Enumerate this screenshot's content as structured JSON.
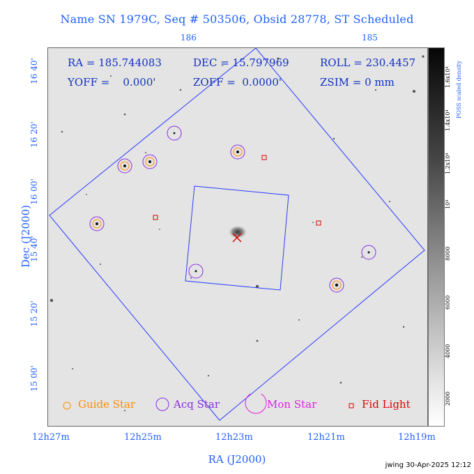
{
  "title": "Name SN 1979C, Seq # 503506, Obsid 28778, ST Scheduled",
  "top_ticks": [
    "186",
    "185"
  ],
  "bottom_ticks": [
    "12h27m",
    "12h25m",
    "12h23m",
    "12h21m",
    "12h19m"
  ],
  "left_ticks": [
    "16 40'",
    "16 20'",
    "16 00'",
    "15 40'",
    "15 20'",
    "15 00'"
  ],
  "xlabel": "RA (J2000)",
  "ylabel": "Dec (J2000)",
  "info": {
    "ra": "RA = 185.744083",
    "dec": "DEC = 15.797969",
    "roll": "ROLL = 230.4457",
    "yoff": "YOFF =    0.000'",
    "zoff": "ZOFF =  0.0000'",
    "zsim": "ZSIM = 0 mm"
  },
  "legend": {
    "guide": "Guide Star",
    "acq": "Acq Star",
    "mon": "Mon Star",
    "fid": "Fid Light"
  },
  "colorbar": {
    "label": "POSS scaled density",
    "ticks": [
      "1.6x10⁴",
      "1.4x10⁴",
      "1.2x10⁴",
      "10⁴",
      "8000",
      "6000",
      "4000",
      "2000"
    ]
  },
  "footer": "jwing 30-Apr-2025 12:12",
  "colors": {
    "axis": "#1f5fff",
    "guide": "#ff8c00",
    "acq": "#8a2be2",
    "mon": "#e020e0",
    "fid": "#e00000",
    "fov": "#2a3bff"
  }
}
